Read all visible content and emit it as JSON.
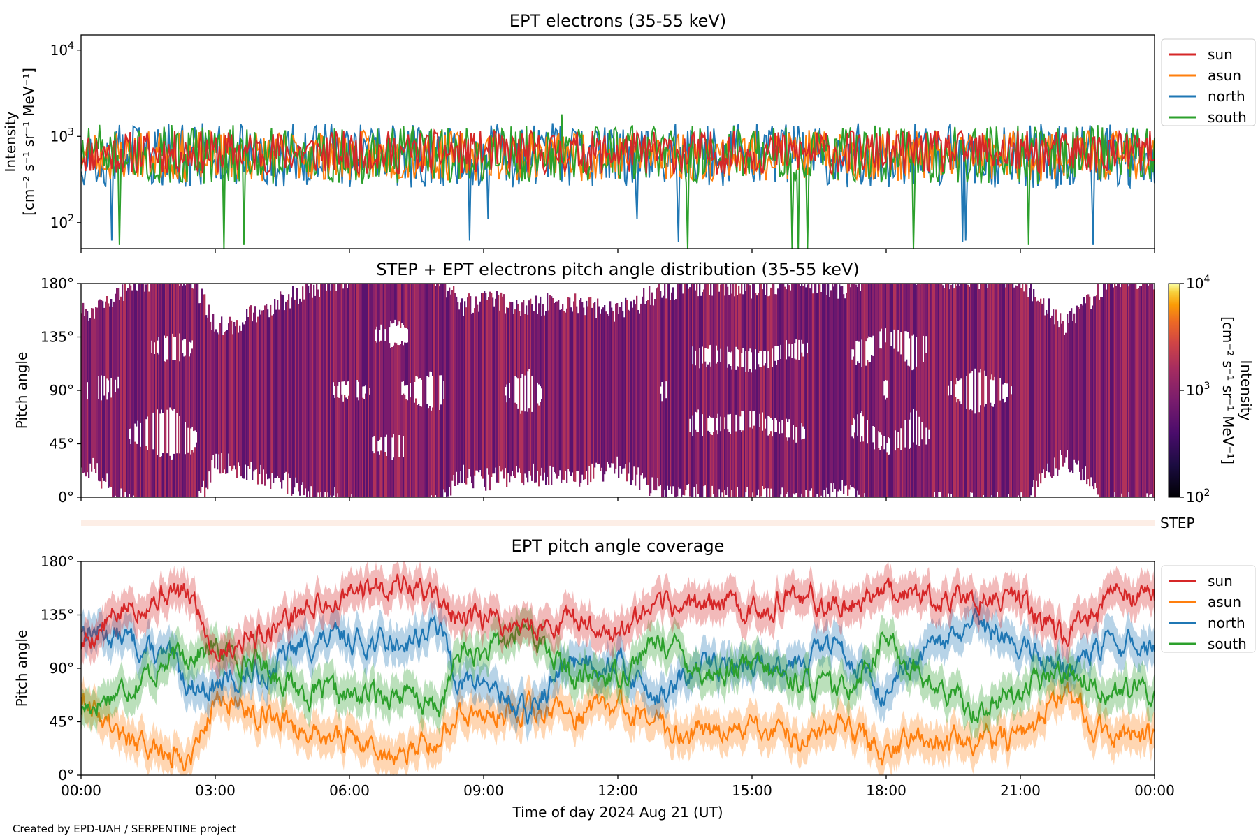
{
  "colors": {
    "sun": "#d62728",
    "asun": "#ff7f0e",
    "north": "#1f77b4",
    "south": "#2ca02c"
  },
  "footer": "Created by EPD-UAH / SERPENTINE project",
  "xlabel": "Time of day 2024 Aug 21 (UT)",
  "chart_data": [
    {
      "type": "line",
      "title": "EPT electrons (35-55 keV)",
      "ylabel_line1": "Intensity",
      "ylabel_line2": "[cm⁻² s⁻¹ sr⁻¹ MeV⁻¹]",
      "yscale": "log",
      "ylim": [
        50,
        15000
      ],
      "yticks": [
        {
          "exp": "2"
        },
        {
          "exp": "3"
        },
        {
          "exp": "4"
        }
      ],
      "ytick_base": "10",
      "xlim_hours": [
        0,
        24
      ],
      "legend": [
        "sun",
        "asun",
        "north",
        "south"
      ],
      "legend_position": "outside right",
      "series": [
        {
          "name": "sun",
          "typical_level": 650,
          "spread_low": 380,
          "spread_high": 1100
        },
        {
          "name": "asun",
          "typical_level": 600,
          "spread_low": 320,
          "spread_high": 1100
        },
        {
          "name": "north",
          "typical_level": 600,
          "spread_low": 250,
          "spread_high": 1200,
          "min_dips": [
            110,
            62,
            60,
            55
          ]
        },
        {
          "name": "south",
          "typical_level": 620,
          "spread_low": 300,
          "spread_high": 1250,
          "max_peak": 1800,
          "min_dips": [
            55,
            50
          ]
        }
      ]
    },
    {
      "type": "heatmap",
      "title": "STEP + EPT electrons pitch angle distribution (35-55 keV)",
      "ylabel": "Pitch angle",
      "yticks": [
        "0°",
        "45°",
        "90°",
        "135°",
        "180°"
      ],
      "xlim_hours": [
        0,
        24
      ],
      "colorbar_label_line1": "Intensity",
      "colorbar_label_line2": "[cm⁻² s⁻¹ sr⁻¹ MeV⁻¹]",
      "colorbar_scale": "log",
      "colorbar_range": [
        100,
        10000
      ],
      "colorbar_ticks": [
        {
          "exp": "2"
        },
        {
          "exp": "3"
        },
        {
          "exp": "4"
        }
      ],
      "colorbar_base": "10",
      "colormap": "inferno",
      "typical_intensity": 600,
      "step_label": "STEP"
    },
    {
      "type": "line",
      "title": "EPT pitch angle coverage",
      "ylabel": "Pitch angle",
      "ylim": [
        0,
        180
      ],
      "yticks": [
        "0°",
        "45°",
        "90°",
        "135°",
        "180°"
      ],
      "xlim_hours": [
        0,
        24
      ],
      "x_ticks": [
        "00:00",
        "03:00",
        "06:00",
        "09:00",
        "12:00",
        "15:00",
        "18:00",
        "21:00",
        "00:00"
      ],
      "legend": [
        "sun",
        "asun",
        "north",
        "south"
      ],
      "legend_position": "outside right",
      "band_halfwidth_deg": 15,
      "x_hours": [
        0,
        1,
        2,
        2.5,
        3,
        4,
        5,
        6,
        7,
        8,
        8.5,
        9,
        10,
        11,
        12,
        13,
        14,
        15,
        16,
        17,
        18,
        19,
        20,
        21,
        22,
        23,
        24
      ],
      "series": [
        {
          "name": "sun",
          "values": [
            110,
            140,
            155,
            150,
            105,
            120,
            140,
            150,
            165,
            150,
            125,
            130,
            125,
            130,
            120,
            140,
            145,
            140,
            150,
            140,
            160,
            150,
            150,
            150,
            110,
            150,
            150
          ]
        },
        {
          "name": "asun",
          "values": [
            70,
            30,
            15,
            20,
            65,
            55,
            40,
            30,
            15,
            30,
            55,
            50,
            55,
            50,
            60,
            40,
            35,
            40,
            30,
            40,
            20,
            30,
            30,
            30,
            70,
            30,
            30
          ]
        },
        {
          "name": "north",
          "values": [
            125,
            115,
            95,
            75,
            75,
            85,
            110,
            115,
            110,
            125,
            75,
            80,
            50,
            100,
            95,
            65,
            95,
            90,
            100,
            110,
            65,
            105,
            125,
            110,
            90,
            110,
            110
          ]
        },
        {
          "name": "south",
          "values": [
            55,
            75,
            95,
            105,
            105,
            95,
            70,
            65,
            70,
            55,
            105,
            100,
            125,
            80,
            85,
            115,
            85,
            90,
            80,
            70,
            115,
            75,
            55,
            70,
            90,
            70,
            70
          ]
        }
      ]
    }
  ]
}
